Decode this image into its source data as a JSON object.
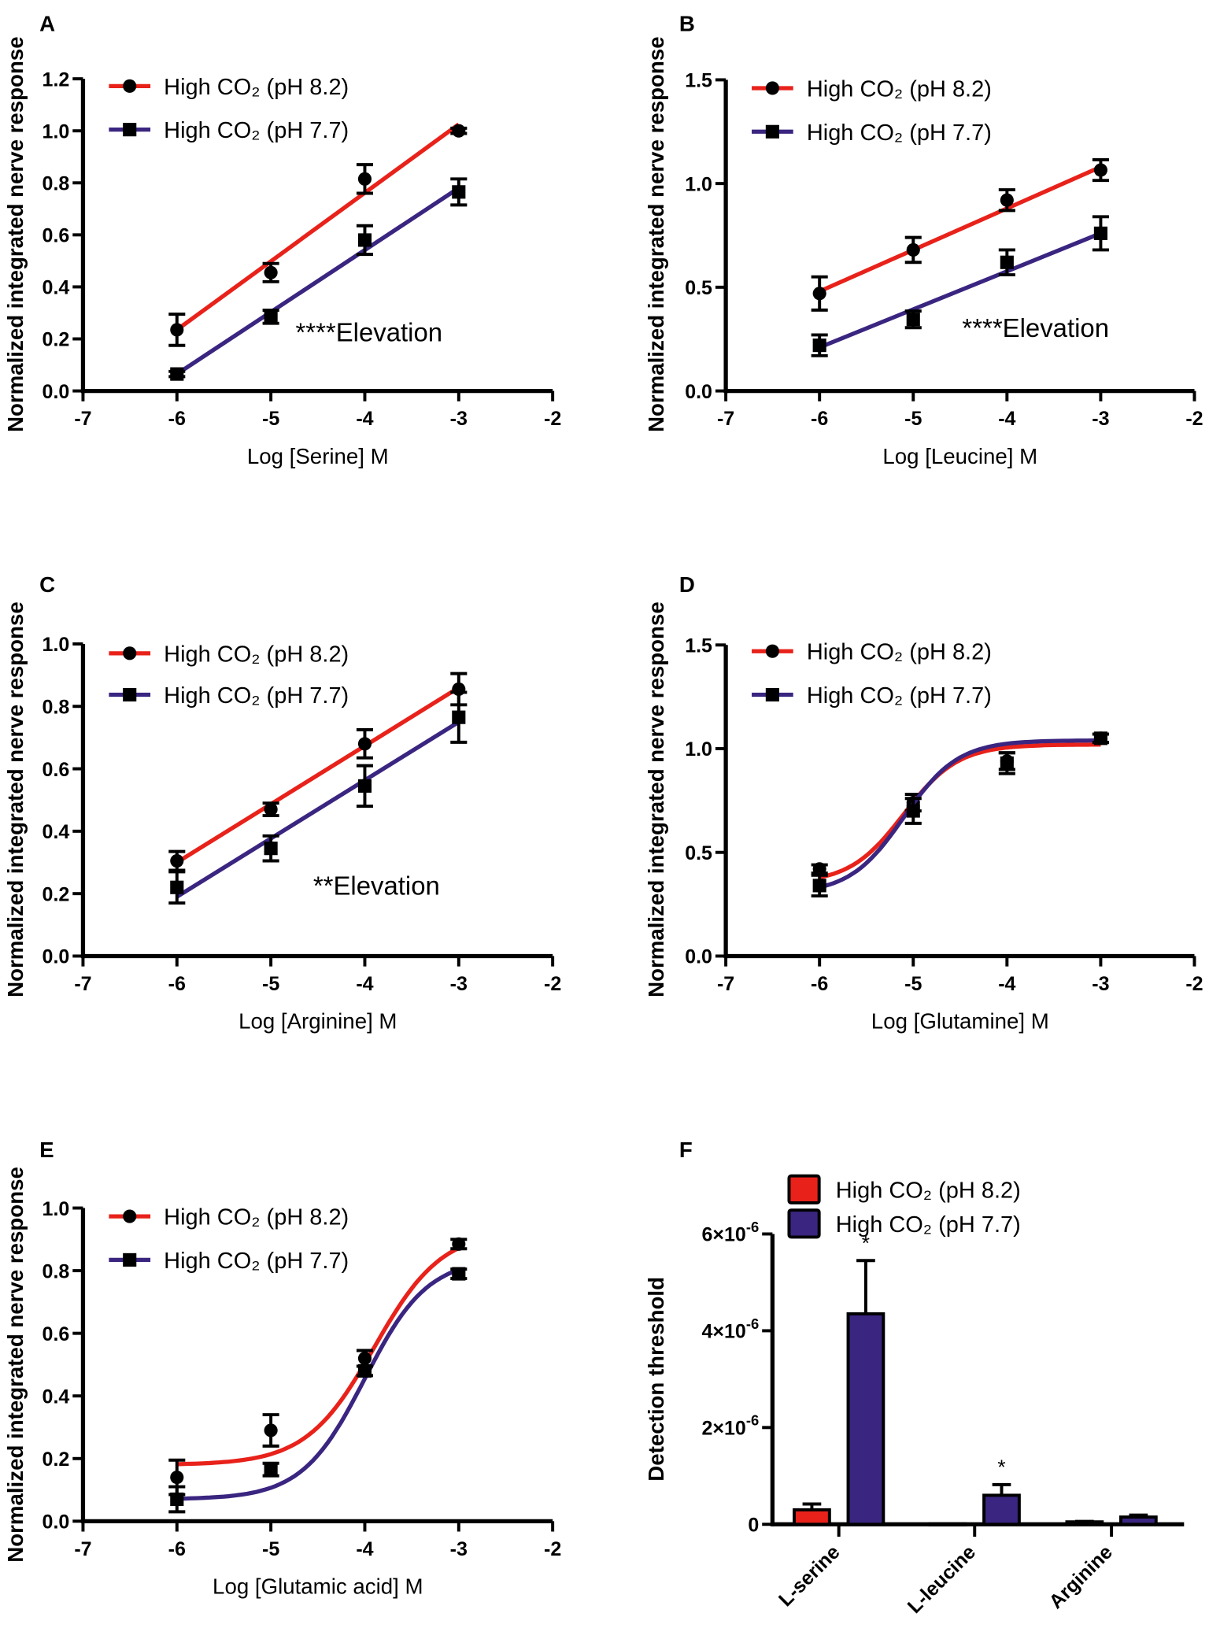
{
  "colors": {
    "pH82": "#e8221a",
    "pH77": "#3a2580",
    "axis": "#000000"
  },
  "chart_data": [
    {
      "panel": "A",
      "type": "line",
      "xlabel": "Log [Serine] M",
      "ylabel": "Normalized integrated nerve response",
      "xlim": [
        -7,
        -2
      ],
      "ylim": [
        0,
        1.2
      ],
      "yticks": [
        0,
        0.2,
        0.4,
        0.6,
        0.8,
        1.0,
        1.2
      ],
      "xticks": [
        -7,
        -6,
        -5,
        -4,
        -3,
        -2
      ],
      "yfmt": 1,
      "annotation": "****Elevation",
      "fit": "linear",
      "series": [
        {
          "name": "High CO₂ (pH 8.2)",
          "marker": "circle",
          "x": [
            -6,
            -5,
            -4,
            -3
          ],
          "y": [
            0.235,
            0.455,
            0.815,
            1.0
          ],
          "err": [
            0.06,
            0.035,
            0.055,
            0.01
          ],
          "fit_line": [
            [
              -6,
              0.235
            ],
            [
              -3,
              1.025
            ]
          ]
        },
        {
          "name": "High CO₂ (pH 7.7)",
          "marker": "square",
          "x": [
            -6,
            -5,
            -4,
            -3
          ],
          "y": [
            0.065,
            0.285,
            0.58,
            0.765
          ],
          "err": [
            0.01,
            0.025,
            0.055,
            0.05
          ],
          "fit_line": [
            [
              -6,
              0.065
            ],
            [
              -3,
              0.78
            ]
          ]
        }
      ]
    },
    {
      "panel": "B",
      "type": "line",
      "xlabel": "Log [Leucine] M",
      "ylabel": "Normalized integrated nerve response",
      "xlim": [
        -7,
        -2
      ],
      "ylim": [
        0,
        1.5
      ],
      "yticks": [
        0,
        0.5,
        1.0,
        1.5
      ],
      "xticks": [
        -7,
        -6,
        -5,
        -4,
        -3,
        -2
      ],
      "yfmt": 1,
      "annotation": "****Elevation",
      "fit": "linear",
      "series": [
        {
          "name": "High CO₂ (pH 8.2)",
          "marker": "circle",
          "x": [
            -6,
            -5,
            -4,
            -3
          ],
          "y": [
            0.47,
            0.68,
            0.92,
            1.065
          ],
          "err": [
            0.08,
            0.06,
            0.05,
            0.05
          ],
          "fit_line": [
            [
              -6,
              0.48
            ],
            [
              -3,
              1.08
            ]
          ]
        },
        {
          "name": "High CO₂ (pH 7.7)",
          "marker": "square",
          "x": [
            -6,
            -5,
            -4,
            -3
          ],
          "y": [
            0.22,
            0.345,
            0.62,
            0.76
          ],
          "err": [
            0.05,
            0.04,
            0.06,
            0.08
          ],
          "fit_line": [
            [
              -6,
              0.21
            ],
            [
              -3,
              0.76
            ]
          ]
        }
      ]
    },
    {
      "panel": "C",
      "type": "line",
      "xlabel": "Log [Arginine] M",
      "ylabel": "Normalized integrated nerve response",
      "xlim": [
        -7,
        -2
      ],
      "ylim": [
        0,
        1.0
      ],
      "yticks": [
        0,
        0.2,
        0.4,
        0.6,
        0.8,
        1.0
      ],
      "xticks": [
        -7,
        -6,
        -5,
        -4,
        -3,
        -2
      ],
      "yfmt": 1,
      "annotation": "**Elevation",
      "fit": "linear",
      "series": [
        {
          "name": "High CO₂ (pH 8.2)",
          "marker": "circle",
          "x": [
            -6,
            -5,
            -4,
            -3
          ],
          "y": [
            0.305,
            0.47,
            0.68,
            0.855
          ],
          "err": [
            0.03,
            0.02,
            0.045,
            0.05
          ],
          "fit_line": [
            [
              -6,
              0.3
            ],
            [
              -3,
              0.86
            ]
          ]
        },
        {
          "name": "High CO₂ (pH 7.7)",
          "marker": "square",
          "x": [
            -6,
            -5,
            -4,
            -3
          ],
          "y": [
            0.22,
            0.345,
            0.545,
            0.765
          ],
          "err": [
            0.05,
            0.04,
            0.065,
            0.08
          ],
          "fit_line": [
            [
              -6,
              0.19
            ],
            [
              -3,
              0.75
            ]
          ]
        }
      ]
    },
    {
      "panel": "D",
      "type": "line",
      "xlabel": "Log [Glutamine] M",
      "ylabel": "Normalized integrated nerve response",
      "xlim": [
        -7,
        -2
      ],
      "ylim": [
        0,
        1.5
      ],
      "yticks": [
        0,
        0.5,
        1.0,
        1.5
      ],
      "xticks": [
        -7,
        -6,
        -5,
        -4,
        -3,
        -2
      ],
      "yfmt": 1,
      "annotation": "",
      "fit": "sigmoidal",
      "series": [
        {
          "name": "High CO₂ (pH 8.2)",
          "marker": "circle",
          "x": [
            -6,
            -5,
            -4,
            -3
          ],
          "y": [
            0.42,
            0.74,
            0.94,
            1.05
          ],
          "err": [
            0.02,
            0.04,
            0.04,
            0.02
          ],
          "fit_sigmoid": {
            "bottom": 0.35,
            "top": 1.02,
            "logEC50": -5.1,
            "hill": 1.5
          }
        },
        {
          "name": "High CO₂ (pH 7.7)",
          "marker": "square",
          "x": [
            -6,
            -5,
            -4,
            -3
          ],
          "y": [
            0.34,
            0.7,
            0.93,
            1.05
          ],
          "err": [
            0.05,
            0.06,
            0.05,
            0.02
          ],
          "fit_sigmoid": {
            "bottom": 0.3,
            "top": 1.04,
            "logEC50": -5.1,
            "hill": 1.5
          }
        }
      ]
    },
    {
      "panel": "E",
      "type": "line",
      "xlabel": "Log [Glutamic acid] M",
      "ylabel": "Normalized integrated nerve response",
      "xlim": [
        -7,
        -2
      ],
      "ylim": [
        0,
        1.0
      ],
      "yticks": [
        0,
        0.2,
        0.4,
        0.6,
        0.8,
        1.0
      ],
      "xticks": [
        -7,
        -6,
        -5,
        -4,
        -3,
        -2
      ],
      "yfmt": 1,
      "annotation": "",
      "fit": "sigmoidal",
      "series": [
        {
          "name": "High CO₂ (pH 8.2)",
          "marker": "circle",
          "x": [
            -6,
            -5,
            -4,
            -3
          ],
          "y": [
            0.14,
            0.29,
            0.52,
            0.885
          ],
          "err": [
            0.055,
            0.05,
            0.025,
            0.015
          ],
          "fit_sigmoid": {
            "bottom": 0.18,
            "top": 0.93,
            "logEC50": -3.9,
            "hill": 1.2
          }
        },
        {
          "name": "High CO₂ (pH 7.7)",
          "marker": "square",
          "x": [
            -6,
            -5,
            -4,
            -3
          ],
          "y": [
            0.07,
            0.165,
            0.48,
            0.79
          ],
          "err": [
            0.04,
            0.02,
            0.015,
            0.015
          ],
          "fit_sigmoid": {
            "bottom": 0.07,
            "top": 0.84,
            "logEC50": -4.0,
            "hill": 1.3
          }
        }
      ]
    },
    {
      "panel": "F",
      "type": "bar",
      "ylabel": "Detection threshold",
      "categories": [
        "L-serine",
        "L-leucine",
        "Arginine"
      ],
      "ylim": [
        0,
        6e-06
      ],
      "yticks": [
        {
          "value": 0,
          "base": "0",
          "exp": ""
        },
        {
          "value": 2e-06,
          "base": "2×10",
          "exp": "-6"
        },
        {
          "value": 4e-06,
          "base": "4×10",
          "exp": "-6"
        },
        {
          "value": 6e-06,
          "base": "6×10",
          "exp": "-6"
        }
      ],
      "series": [
        {
          "name": "High CO₂ (pH 8.2)",
          "values": [
            3e-07,
            1e-08,
            5e-08
          ],
          "err": [
            1.2e-07,
            0,
            1e-08
          ],
          "sig": [
            "",
            "",
            ""
          ]
        },
        {
          "name": "High CO₂ (pH 7.7)",
          "values": [
            4.35e-06,
            6e-07,
            1.5e-07
          ],
          "err": [
            1.1e-06,
            2.2e-07,
            4e-08
          ],
          "sig": [
            "*",
            "*",
            ""
          ]
        }
      ]
    }
  ]
}
